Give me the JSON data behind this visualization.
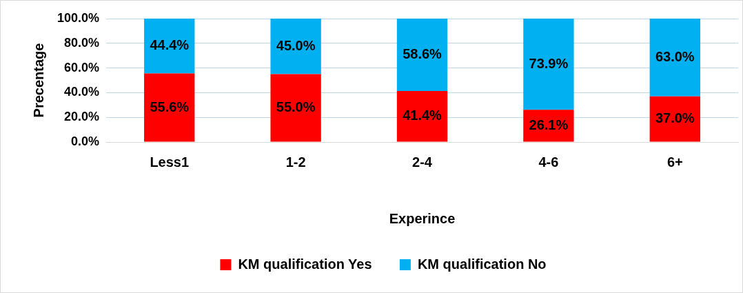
{
  "chart_data": {
    "type": "bar",
    "stacked": true,
    "xlabel": "Experince",
    "ylabel": "Precentage",
    "categories": [
      "Less1",
      "1-2",
      "2-4",
      "4-6",
      "6+"
    ],
    "series": [
      {
        "name": "KM qualification Yes",
        "color": "#ff0000",
        "values": [
          55.6,
          55.0,
          41.4,
          26.1,
          37.0
        ],
        "value_labels": [
          "55.6%",
          "55.0%",
          "41.4%",
          "26.1%",
          "37.0%"
        ]
      },
      {
        "name": "KM qualification No",
        "color": "#00b0f0",
        "values": [
          44.4,
          45.0,
          58.6,
          73.9,
          63.0
        ],
        "value_labels": [
          "44.4%",
          "45.0%",
          "58.6%",
          "73.9%",
          "63.0%"
        ]
      }
    ],
    "ylim": [
      0,
      100
    ],
    "yticks": [
      {
        "value": 0,
        "label": "0.0%"
      },
      {
        "value": 20,
        "label": "20.0%"
      },
      {
        "value": 40,
        "label": "40.0%"
      },
      {
        "value": 60,
        "label": "60.0%"
      },
      {
        "value": 80,
        "label": "80.0%"
      },
      {
        "value": 100,
        "label": "100.0%"
      }
    ],
    "grid": "y",
    "legend": "bottom"
  }
}
